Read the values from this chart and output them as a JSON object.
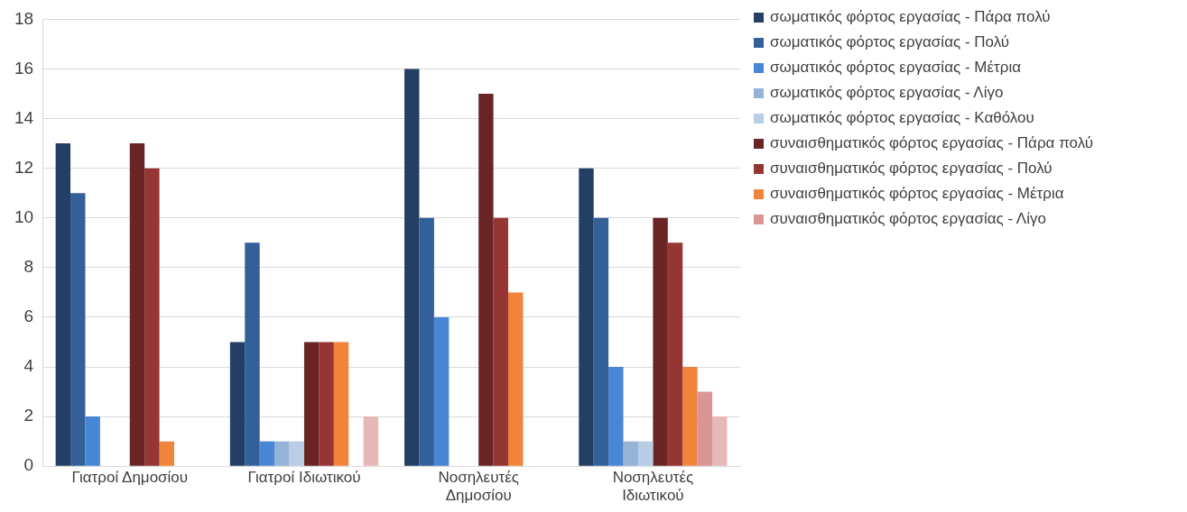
{
  "chart_data": {
    "type": "bar",
    "categories": [
      "Γιατροί Δημοσίου",
      "Γιατροί Ιδιωτικού",
      "Νοσηλευτές Δημοσίου",
      "Νοσηλευτές Ιδιωτικού"
    ],
    "series": [
      {
        "name": "σωματικός φόρτος εργασίας - Πάρα πολύ",
        "color": "#243f66",
        "values": [
          13,
          5,
          16,
          12
        ]
      },
      {
        "name": "σωματικός φόρτος εργασίας - Πολύ",
        "color": "#34609a",
        "values": [
          11,
          9,
          10,
          10
        ]
      },
      {
        "name": "σωματικός φόρτος εργασίας - Μέτρια",
        "color": "#4a86d6",
        "values": [
          2,
          1,
          6,
          4
        ]
      },
      {
        "name": "σωματικός φόρτος εργασίας - Λίγο",
        "color": "#95b3d7",
        "values": [
          0,
          1,
          0,
          1
        ]
      },
      {
        "name": "σωματικός φόρτος εργασίας - Καθόλου",
        "color": "#b9cde5",
        "values": [
          0,
          1,
          0,
          1
        ]
      },
      {
        "name": "συναισθηματικός φόρτος εργασίας - Πάρα πολύ",
        "color": "#6a2424",
        "values": [
          13,
          5,
          15,
          10
        ]
      },
      {
        "name": "συναισθηματικός φόρτος εργασίας - Πολύ",
        "color": "#963634",
        "values": [
          12,
          5,
          10,
          9
        ]
      },
      {
        "name": "συναισθηματικός φόρτος εργασίας - Μέτρια",
        "color": "#f0843a",
        "values": [
          1,
          5,
          7,
          4
        ]
      },
      {
        "name": "συναισθηματικός φόρτος εργασίας - Λίγο",
        "color": "#d99694",
        "values": [
          0,
          0,
          0,
          3
        ]
      },
      {
        "color": "#e6b9b8",
        "values": [
          0,
          2,
          0,
          2
        ]
      }
    ],
    "ylim": [
      0,
      18
    ],
    "yticks": [
      0,
      2,
      4,
      6,
      8,
      10,
      12,
      14,
      16,
      18
    ],
    "grid": "y",
    "legend": "right"
  }
}
